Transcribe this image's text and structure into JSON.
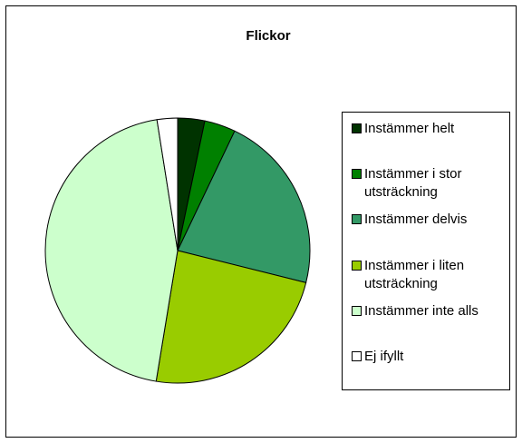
{
  "chart_data": {
    "type": "pie",
    "title": "Flickor",
    "categories": [
      "Instämmer helt",
      "Instämmer i stor utsträckning",
      "Instämmer delvis",
      "Instämmer i liten utsträckning",
      "Instämmer inte alls",
      "Ej ifyllt"
    ],
    "values": [
      3.3,
      3.8,
      21.8,
      23.7,
      44.9,
      2.5
    ],
    "colors": [
      "#003300",
      "#008000",
      "#339966",
      "#99cc00",
      "#ccffcc",
      "#ffffff"
    ],
    "legend": "right"
  }
}
